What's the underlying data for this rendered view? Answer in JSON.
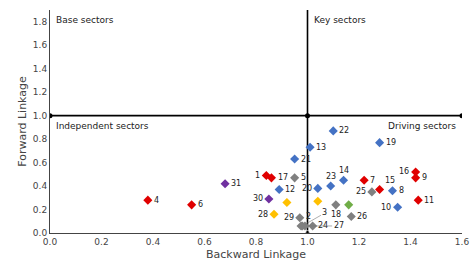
{
  "chart_data": {
    "type": "scatter",
    "xlabel": "Backward Linkage",
    "ylabel": "Forward Linkage",
    "marker": "diamond",
    "x": [
      0.84,
      0.38,
      0.55,
      1.22,
      1.42,
      1.43,
      1.28,
      1.42,
      0.86,
      1.33,
      1.35,
      0.89,
      1.01,
      1.14,
      1.28,
      1.04,
      0.95,
      1.1,
      1.09,
      0.95,
      1.11,
      0.99,
      1.25,
      1.17,
      1.02,
      0.97,
      0.975,
      0.98,
      0.87,
      0.85,
      0.68,
      1.04,
      0.92,
      1.16
    ],
    "values": [
      0.49,
      0.28,
      0.24,
      0.45,
      0.47,
      0.28,
      0.37,
      0.52,
      0.47,
      0.36,
      0.22,
      0.37,
      0.73,
      0.45,
      0.77,
      0.38,
      0.63,
      0.87,
      0.4,
      0.47,
      0.24,
      0.06,
      0.35,
      0.14,
      0.06,
      0.13,
      0.06,
      0.06,
      0.16,
      0.29,
      0.42,
      0.27,
      0.26,
      0.24
    ],
    "point_labels": [
      "1",
      "4",
      "6",
      "7",
      "9",
      "11",
      "15",
      "16",
      "17",
      "8",
      "10",
      "12",
      "13",
      "14",
      "19",
      "20",
      "21",
      "22",
      "23",
      "5",
      "18",
      "24",
      "25",
      "26",
      "27",
      "29",
      "2",
      "3",
      "28",
      "30",
      "31",
      null,
      null,
      null
    ],
    "colors": [
      "#E00000",
      "#E00000",
      "#E00000",
      "#E00000",
      "#E00000",
      "#E00000",
      "#E00000",
      "#E00000",
      "#E00000",
      "#4472C4",
      "#4472C4",
      "#4472C4",
      "#4472C4",
      "#4472C4",
      "#4472C4",
      "#4472C4",
      "#4472C4",
      "#4472C4",
      "#4472C4",
      "#808080",
      "#808080",
      "#808080",
      "#808080",
      "#808080",
      "#808080",
      "#808080",
      "#808080",
      "#808080",
      "#FFC000",
      "#7030A0",
      "#7030A0",
      "#FFC000",
      "#FFC000",
      "#70AD47"
    ],
    "xline": 1.0,
    "yline": 1.0,
    "quadrant_labels": [
      "Base sectors",
      "Key sectors",
      "Independent sectors",
      "Driving sectors"
    ],
    "xlim": [
      0.0,
      1.6
    ],
    "ylim": [
      0.0,
      1.9
    ],
    "xticks": [
      {
        "value": 0,
        "label": "0.0"
      },
      0.2,
      0.4,
      0.6,
      0.8,
      {
        "value": 1,
        "label": "1.0"
      },
      1.2,
      1.4,
      1.6
    ],
    "yticks": [
      {
        "value": 0,
        "label": "0.0"
      },
      0.2,
      0.4,
      0.6,
      0.8,
      {
        "value": 1,
        "label": "1.0"
      },
      1.2,
      1.4,
      1.6,
      1.8
    ],
    "grid": false
  }
}
